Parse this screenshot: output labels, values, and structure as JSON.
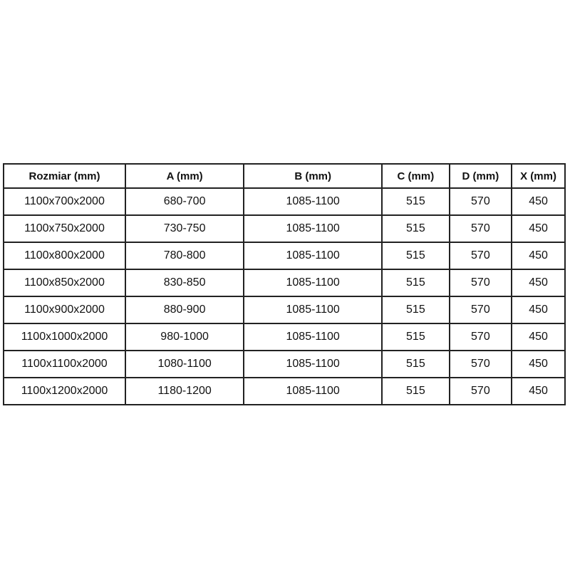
{
  "table": {
    "columns": [
      "Rozmiar (mm)",
      "A (mm)",
      "B (mm)",
      "C (mm)",
      "D (mm)",
      "X (mm)"
    ],
    "rows": [
      [
        "1100x700x2000",
        "680-700",
        "1085-1100",
        "515",
        "570",
        "450"
      ],
      [
        "1100x750x2000",
        "730-750",
        "1085-1100",
        "515",
        "570",
        "450"
      ],
      [
        "1100x800x2000",
        "780-800",
        "1085-1100",
        "515",
        "570",
        "450"
      ],
      [
        "1100x850x2000",
        "830-850",
        "1085-1100",
        "515",
        "570",
        "450"
      ],
      [
        "1100x900x2000",
        "880-900",
        "1085-1100",
        "515",
        "570",
        "450"
      ],
      [
        "1100x1000x2000",
        "980-1000",
        "1085-1100",
        "515",
        "570",
        "450"
      ],
      [
        "1100x1100x2000",
        "1080-1100",
        "1085-1100",
        "515",
        "570",
        "450"
      ],
      [
        "1100x1200x2000",
        "1180-1200",
        "1085-1100",
        "515",
        "570",
        "450"
      ]
    ]
  },
  "colors": {
    "border": "#222222",
    "text": "#111111",
    "background": "#ffffff"
  }
}
